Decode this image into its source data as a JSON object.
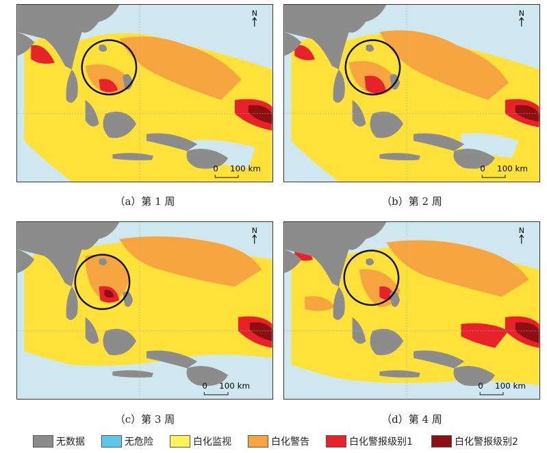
{
  "panels": [
    {
      "caption": "（a）第 1 周",
      "scale_zero": "0",
      "scale_label": "100 km",
      "north": "N"
    },
    {
      "caption": "（b）第 2 周",
      "scale_zero": "0",
      "scale_label": "100 km",
      "north": "N"
    },
    {
      "caption": "（c）第 3 周",
      "scale_zero": "0",
      "scale_label": "100 km",
      "north": "N"
    },
    {
      "caption": "（d）第 4 周",
      "scale_zero": "0",
      "scale_label": "100 km",
      "north": "N"
    }
  ],
  "legend": [
    {
      "label": "无数据",
      "color": "#8c8c8c"
    },
    {
      "label": "无危险",
      "color": "#5bc8ec"
    },
    {
      "label": "白化监视",
      "color": "#fff25a"
    },
    {
      "label": "白化警告",
      "color": "#f6a540"
    },
    {
      "label": "白化警报级别1",
      "color": "#e8222a"
    },
    {
      "label": "白化警报级别2",
      "color": "#8e0f12"
    }
  ],
  "colors": {
    "ocean": "#cfe8f0",
    "land": "#8c8c8c",
    "watch": "#fee23a",
    "warning": "#f6a540",
    "alert1": "#e8222a",
    "alert2": "#8e0f12"
  }
}
